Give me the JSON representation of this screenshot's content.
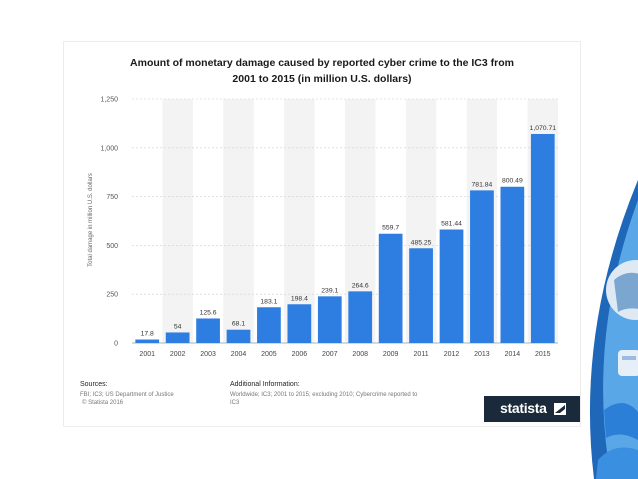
{
  "chart_data": {
    "type": "bar",
    "title": [
      "Amount of monetary damage caused by reported cyber crime to the IC3 from",
      "2001 to 2015 (in million U.S. dollars)"
    ],
    "ylabel": "Total damage in million U.S. dollars",
    "xlabel": "",
    "categories": [
      "2001",
      "2002",
      "2003",
      "2004",
      "2005",
      "2006",
      "2007",
      "2008",
      "2009",
      "2011",
      "2012",
      "2013",
      "2014",
      "2015"
    ],
    "values": [
      17.8,
      54,
      125.6,
      68.1,
      183.1,
      198.4,
      239.1,
      264.6,
      559.7,
      485.25,
      581.44,
      781.84,
      800.49,
      1070.71
    ],
    "value_labels": [
      "17.8",
      "54",
      "125.6",
      "68.1",
      "183.1",
      "198.4",
      "239.1",
      "264.6",
      "559.7",
      "485.25",
      "581.44",
      "781.84",
      "800.49",
      "1,070.71"
    ],
    "yticks": [
      "0",
      "250",
      "500",
      "750",
      "1,000",
      "1,250"
    ],
    "ylim": [
      0,
      1250
    ],
    "grid": true,
    "bar_color": "#2e7de0"
  },
  "footer": {
    "sources_label": "Sources:",
    "sources_lines": [
      "FBI; IC3; US Department of Justice",
      "© Statista 2016"
    ],
    "additional_label": "Additional Information:",
    "additional_lines": [
      "Worldwide; IC3; 2001 to 2015; excluding 2010; Cybercrime reported to",
      "IC3"
    ]
  },
  "branding": {
    "logo_text": "statista",
    "logo_bg": "#1a2a3a"
  }
}
